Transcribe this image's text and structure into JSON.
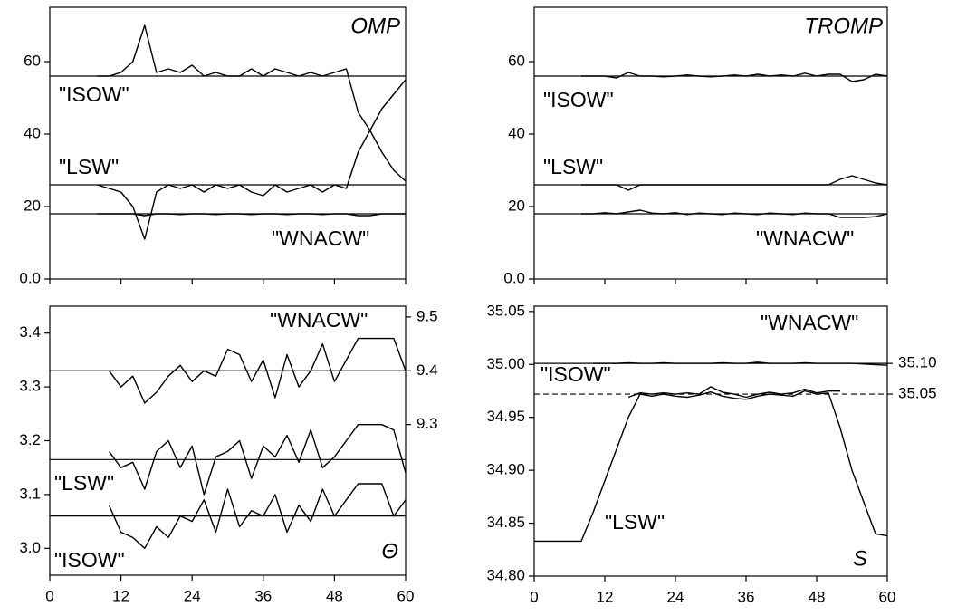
{
  "chart_data": [
    {
      "type": "line",
      "title": "OMP",
      "x": [
        8,
        10,
        12,
        14,
        16,
        18,
        20,
        22,
        24,
        26,
        28,
        30,
        32,
        34,
        36,
        38,
        40,
        42,
        44,
        46,
        48,
        50,
        52,
        54,
        56,
        58,
        60
      ],
      "xlim": [
        0,
        60
      ],
      "xticks": [
        0,
        12,
        24,
        36,
        48,
        60
      ],
      "ylim": [
        0,
        75
      ],
      "yticks": [
        {
          "value": 0,
          "label": "0.0"
        },
        20,
        40,
        60
      ],
      "reference_lines": [
        {
          "value": 56
        },
        {
          "value": 26
        },
        {
          "value": 18
        }
      ],
      "series": [
        {
          "name": "\"ISOW\"",
          "color": "#000000",
          "values": [
            56,
            56,
            57,
            60,
            70,
            57,
            58,
            57,
            59,
            56,
            57,
            56,
            56,
            58,
            56,
            58,
            57,
            56,
            57,
            56,
            57,
            58,
            46,
            41,
            47,
            51,
            55
          ]
        },
        {
          "name": "\"LSW\"",
          "color": "#000000",
          "values": [
            26,
            25,
            24,
            20,
            11,
            24,
            26,
            25,
            26,
            24,
            26,
            25,
            26,
            24,
            23,
            26,
            24,
            25,
            26,
            24,
            26,
            25,
            35,
            41,
            35,
            30,
            27
          ]
        },
        {
          "name": "\"WNACW\"",
          "color": "#000000",
          "values": [
            18,
            18,
            18,
            18,
            17.5,
            18,
            18,
            17.8,
            18,
            18,
            17.8,
            18,
            18,
            17.8,
            18,
            18,
            17.8,
            18,
            18,
            17.8,
            18,
            18,
            17.5,
            17.5,
            18,
            18,
            18
          ]
        }
      ]
    },
    {
      "type": "line",
      "title": "TROMP",
      "x": [
        8,
        10,
        12,
        14,
        16,
        18,
        20,
        22,
        24,
        26,
        28,
        30,
        32,
        34,
        36,
        38,
        40,
        42,
        44,
        46,
        48,
        50,
        52,
        54,
        56,
        58,
        60
      ],
      "xlim": [
        0,
        60
      ],
      "xticks": [
        0,
        12,
        24,
        36,
        48,
        60
      ],
      "ylim": [
        0,
        75
      ],
      "yticks": [
        {
          "value": 0,
          "label": "0.0"
        },
        20,
        40,
        60
      ],
      "reference_lines": [
        {
          "value": 56
        },
        {
          "value": 26
        },
        {
          "value": 18
        }
      ],
      "series": [
        {
          "name": "\"ISOW\"",
          "color": "#000000",
          "values": [
            56,
            56,
            56,
            55.5,
            57,
            56,
            56,
            55.8,
            56,
            56.3,
            56,
            55.8,
            56,
            56.3,
            56,
            56.5,
            56,
            56.3,
            56,
            56.8,
            56,
            56.5,
            56.5,
            54.5,
            55,
            56.5,
            56
          ]
        },
        {
          "name": "\"LSW\"",
          "color": "#000000",
          "values": [
            26,
            26,
            26,
            26,
            24.5,
            26,
            26,
            26,
            26,
            26,
            26,
            26,
            26,
            26,
            26,
            26,
            26,
            26,
            26,
            26,
            26,
            26,
            27.5,
            28.5,
            27.5,
            26.5,
            26
          ]
        },
        {
          "name": "\"WNACW\"",
          "color": "#000000",
          "values": [
            18,
            18,
            18.3,
            18,
            18.5,
            19,
            18.2,
            18,
            18.3,
            17.8,
            18.2,
            18,
            17.8,
            18.2,
            18,
            17.8,
            18.2,
            18,
            17.8,
            18.2,
            18,
            18,
            17,
            17,
            17,
            17.2,
            18
          ]
        }
      ]
    },
    {
      "type": "line",
      "title": "Θ",
      "x": [
        10,
        12,
        14,
        16,
        18,
        20,
        22,
        24,
        26,
        28,
        30,
        32,
        34,
        36,
        38,
        40,
        42,
        44,
        46,
        48,
        50,
        52,
        54,
        56,
        58,
        60
      ],
      "xlim": [
        0,
        60
      ],
      "xticks": [
        0,
        12,
        24,
        36,
        48,
        60
      ],
      "ylim": [
        2.95,
        3.45
      ],
      "yticks": [
        {
          "value": 3,
          "label": "3.0"
        },
        3.1,
        3.2,
        3.3,
        3.4
      ],
      "y2lim": [
        9.02,
        9.52
      ],
      "y2ticks": [
        9.3,
        9.4,
        9.5
      ],
      "reference_lines": [
        {
          "value": 9.4,
          "axis": "y2"
        },
        {
          "value": 3.165
        },
        {
          "value": 3.06
        }
      ],
      "series": [
        {
          "name": "\"WNACW\"",
          "color": "#000000",
          "axis": "y2",
          "values": [
            9.4,
            9.37,
            9.39,
            9.34,
            9.36,
            9.39,
            9.41,
            9.38,
            9.4,
            9.39,
            9.44,
            9.43,
            9.38,
            9.42,
            9.35,
            9.43,
            9.37,
            9.4,
            9.45,
            9.38,
            9.42,
            9.46,
            9.46,
            9.46,
            9.46,
            9.4
          ]
        },
        {
          "name": "\"LSW\"",
          "color": "#000000",
          "values": [
            3.18,
            3.15,
            3.16,
            3.11,
            3.18,
            3.2,
            3.15,
            3.19,
            3.1,
            3.17,
            3.18,
            3.2,
            3.13,
            3.19,
            3.17,
            3.21,
            3.16,
            3.22,
            3.15,
            3.17,
            3.2,
            3.23,
            3.23,
            3.23,
            3.22,
            3.14
          ]
        },
        {
          "name": "\"ISOW\"",
          "color": "#000000",
          "values": [
            3.08,
            3.03,
            3.02,
            3.0,
            3.04,
            3.02,
            3.06,
            3.05,
            3.09,
            3.03,
            3.11,
            3.04,
            3.07,
            3.06,
            3.1,
            3.03,
            3.08,
            3.05,
            3.11,
            3.06,
            3.09,
            3.12,
            3.12,
            3.12,
            3.06,
            3.09
          ]
        }
      ]
    },
    {
      "type": "line",
      "title": "S",
      "x": [
        0,
        2,
        4,
        6,
        8,
        10,
        12,
        14,
        16,
        18,
        20,
        22,
        24,
        26,
        28,
        30,
        32,
        34,
        36,
        38,
        40,
        42,
        44,
        46,
        48,
        50,
        52,
        54,
        56,
        58,
        60
      ],
      "xlim": [
        0,
        60
      ],
      "xticks": [
        0,
        12,
        24,
        36,
        48,
        60
      ],
      "ylim": [
        34.8,
        35.055
      ],
      "yticks": [
        {
          "value": 34.8,
          "label": "34.80"
        },
        34.85,
        {
          "value": 34.9,
          "label": "34.90"
        },
        34.95,
        {
          "value": 35,
          "label": "35.00"
        },
        35.05
      ],
      "y2lim": [
        34.754,
        35.193
      ],
      "y2ticks": [
        35.05,
        {
          "value": 35.1,
          "label": "35.10"
        }
      ],
      "reference_lines": [
        {
          "value": 35.1,
          "axis": "y2"
        },
        {
          "value": 35.05,
          "axis": "y2",
          "dashed": true
        }
      ],
      "series": [
        {
          "name": "\"WNACW\"",
          "color": "#000000",
          "axis": "y2",
          "values": [
            null,
            null,
            null,
            null,
            null,
            35.1,
            35.1,
            35.1,
            35.101,
            35.1,
            35.1,
            35.101,
            35.1,
            35.1,
            35.1,
            35.1,
            35.101,
            35.1,
            35.1,
            35.102,
            35.1,
            35.1,
            35.1,
            35.101,
            35.1,
            35.1,
            35.1,
            35.1,
            35.099,
            35.098,
            35.097
          ]
        },
        {
          "name": "\"ISOW\"",
          "color": "#000000",
          "axis": "y2",
          "values": [
            null,
            null,
            null,
            null,
            null,
            null,
            null,
            null,
            35.045,
            35.052,
            35.05,
            35.052,
            35.05,
            35.052,
            35.05,
            35.062,
            35.053,
            35.05,
            35.045,
            35.05,
            35.053,
            35.05,
            35.052,
            35.058,
            35.052,
            35.055,
            35.055,
            null,
            null,
            null,
            null
          ]
        },
        {
          "name": "\"LSW\"",
          "color": "#000000",
          "values": [
            34.833,
            34.833,
            34.833,
            34.833,
            34.833,
            34.86,
            34.89,
            34.92,
            34.95,
            34.972,
            34.97,
            34.972,
            34.97,
            34.969,
            34.971,
            34.974,
            34.97,
            34.968,
            34.967,
            34.97,
            34.972,
            34.971,
            34.97,
            34.975,
            34.972,
            34.973,
            34.94,
            34.9,
            34.87,
            34.84,
            34.838
          ]
        }
      ]
    }
  ]
}
